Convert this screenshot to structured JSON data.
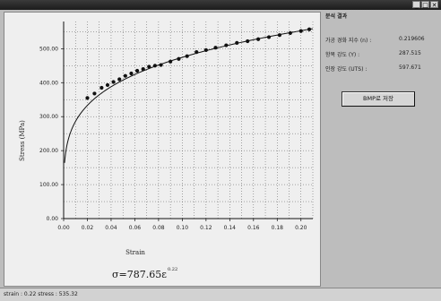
{
  "window": {
    "controls": [
      "_",
      "□",
      "✕"
    ]
  },
  "side": {
    "title": "분석 결과",
    "rows": [
      {
        "label": "가공 경화 지수 (n) :",
        "value": "0.219606"
      },
      {
        "label": "항복 강도 (Y) :",
        "value": "287.515"
      },
      {
        "label": "인장 강도 (UTS) :",
        "value": "597.671"
      }
    ],
    "bmp_button": "BMP로 저장"
  },
  "status": {
    "text": "strain : 0.22  stress : 535.32"
  },
  "plot": {
    "equation_main": "σ=787.65ε",
    "equation_exp": "0.22"
  },
  "chart_data": {
    "type": "scatter",
    "xlabel": "Strain",
    "ylabel": "Stress (MPa)",
    "xlim": [
      0.0,
      0.21
    ],
    "ylim": [
      0,
      580
    ],
    "x_ticks": [
      "0.00",
      "0.02",
      "0.04",
      "0.06",
      "0.08",
      "0.10",
      "0.12",
      "0.14",
      "0.16",
      "0.18",
      "0.20"
    ],
    "y_ticks": [
      "0.00",
      "100.00",
      "200.00",
      "300.00",
      "400.00",
      "500.00"
    ],
    "grid": true,
    "points": [
      {
        "x": 0.02,
        "y": 355
      },
      {
        "x": 0.026,
        "y": 368
      },
      {
        "x": 0.032,
        "y": 385
      },
      {
        "x": 0.037,
        "y": 393
      },
      {
        "x": 0.042,
        "y": 402
      },
      {
        "x": 0.047,
        "y": 410
      },
      {
        "x": 0.052,
        "y": 420
      },
      {
        "x": 0.057,
        "y": 427
      },
      {
        "x": 0.062,
        "y": 435
      },
      {
        "x": 0.067,
        "y": 440
      },
      {
        "x": 0.072,
        "y": 447
      },
      {
        "x": 0.077,
        "y": 450
      },
      {
        "x": 0.082,
        "y": 452
      },
      {
        "x": 0.09,
        "y": 462
      },
      {
        "x": 0.097,
        "y": 470
      },
      {
        "x": 0.104,
        "y": 478
      },
      {
        "x": 0.112,
        "y": 490
      },
      {
        "x": 0.12,
        "y": 496
      },
      {
        "x": 0.128,
        "y": 503
      },
      {
        "x": 0.137,
        "y": 510
      },
      {
        "x": 0.146,
        "y": 517
      },
      {
        "x": 0.155,
        "y": 522
      },
      {
        "x": 0.164,
        "y": 528
      },
      {
        "x": 0.173,
        "y": 534
      },
      {
        "x": 0.182,
        "y": 540
      },
      {
        "x": 0.191,
        "y": 546
      },
      {
        "x": 0.2,
        "y": 552
      },
      {
        "x": 0.207,
        "y": 557
      }
    ],
    "fit": {
      "K": 787.65,
      "n": 0.22
    }
  }
}
